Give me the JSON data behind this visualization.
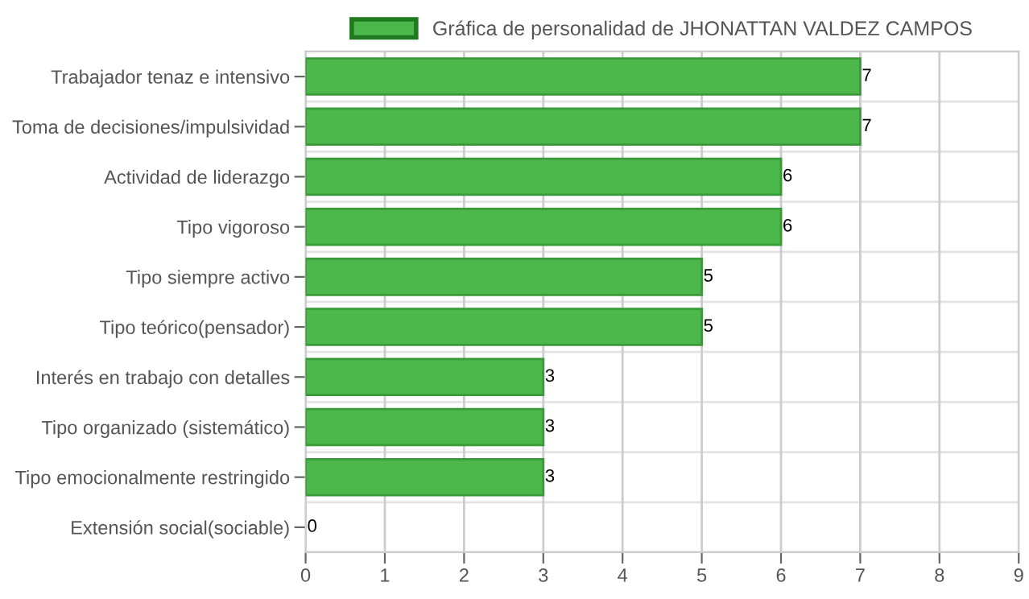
{
  "chart_data": {
    "type": "bar",
    "orientation": "horizontal",
    "categories": [
      "Trabajador tenaz e intensivo",
      "Toma de decisiones/impulsividad",
      "Actividad de liderazgo",
      "Tipo vigoroso",
      "Tipo siempre activo",
      "Tipo teórico(pensador)",
      "Interés en trabajo con detalles",
      "Tipo organizado (sistemático)",
      "Tipo emocionalmente restringido",
      "Extensión social(sociable)"
    ],
    "series": [
      {
        "name": "Gráfica de personalidad de JHONATTAN VALDEZ CAMPOS",
        "color": "#4cb84c",
        "values": [
          7,
          7,
          6,
          6,
          5,
          5,
          3,
          3,
          3,
          0
        ]
      }
    ],
    "xlim": [
      0,
      9
    ],
    "xticks": [
      0,
      1,
      2,
      3,
      4,
      5,
      6,
      7,
      8,
      9
    ],
    "grid": true,
    "legend": "top",
    "data_labels": true
  }
}
